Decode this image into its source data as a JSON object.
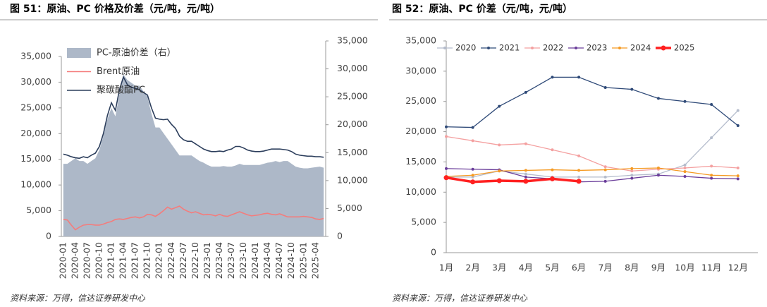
{
  "chart_data": [
    {
      "type": "combo",
      "title": "图 51：原油、PC 价格及价差（元/吨，元/吨）",
      "source": "资料来源：万得，信达证券研发中心",
      "categories": [
        "2020-01",
        null,
        null,
        "2020-04",
        null,
        null,
        "2020-07",
        null,
        null,
        "2020-10",
        null,
        null,
        "2021-01",
        null,
        null,
        "2021-04",
        null,
        null,
        "2021-07",
        null,
        null,
        "2021-10",
        null,
        null,
        "2022-01",
        null,
        null,
        "2022-04",
        null,
        null,
        "2022-07",
        null,
        null,
        "2022-10",
        null,
        null,
        "2023-01",
        null,
        null,
        "2023-04",
        null,
        null,
        "2023-07",
        null,
        null,
        "2023-10",
        null,
        null,
        "2024-01",
        null,
        null,
        "2024-04",
        null,
        null,
        "2024-07",
        null,
        null,
        "2024-10",
        null,
        null,
        "2025-01",
        null,
        null,
        "2025-04",
        null,
        null
      ],
      "ylim": [
        0,
        35000
      ],
      "yticks": [
        0,
        {
          "value": 5000,
          "label": "5,000"
        },
        {
          "value": 10000,
          "label": "10,000"
        },
        {
          "value": 15000,
          "label": "15,000"
        },
        {
          "value": 20000,
          "label": "20,000"
        },
        {
          "value": 25000,
          "label": "25,000"
        },
        {
          "value": 30000,
          "label": "30,000"
        },
        {
          "value": 35000,
          "label": "35,000"
        }
      ],
      "y2lim": [
        0,
        35000
      ],
      "y2ticks": [
        0,
        {
          "value": 5000,
          "label": "5,000"
        },
        {
          "value": 10000,
          "label": "10,000"
        },
        {
          "value": 15000,
          "label": "15,000"
        },
        {
          "value": 20000,
          "label": "20,000"
        },
        {
          "value": 25000,
          "label": "25,000"
        },
        {
          "value": 30000,
          "label": "30,000"
        },
        {
          "value": 35000,
          "label": "35,000"
        }
      ],
      "legend": "upper left",
      "series": [
        {
          "name": "PC-原油价差（右）",
          "type": "area",
          "axis": "y2",
          "color": "#adb8c8",
          "values": [
            13000,
            13000,
            13500,
            14000,
            13500,
            13500,
            13000,
            13500,
            14000,
            15500,
            18000,
            21000,
            23000,
            21500,
            25500,
            29000,
            28000,
            27500,
            27000,
            27000,
            26000,
            25000,
            22000,
            19500,
            19500,
            18500,
            17500,
            16500,
            15500,
            14500,
            14500,
            14500,
            14500,
            14000,
            13500,
            13200,
            12800,
            12500,
            12500,
            12500,
            12600,
            12500,
            12500,
            12700,
            13000,
            12800,
            12800,
            12800,
            12800,
            12800,
            13000,
            13200,
            13300,
            13500,
            13300,
            13500,
            13500,
            13000,
            12500,
            12300,
            12200,
            12200,
            12300,
            12400,
            12500,
            12300
          ]
        },
        {
          "name": "Brent原油",
          "type": "line",
          "color": "#f47c7c",
          "values": [
            3300,
            3200,
            2200,
            1300,
            1800,
            2200,
            2300,
            2300,
            2200,
            2200,
            2400,
            2700,
            2900,
            3300,
            3400,
            3300,
            3500,
            3700,
            3800,
            3600,
            3800,
            4300,
            4200,
            3900,
            4400,
            5000,
            5700,
            5300,
            5600,
            5900,
            5300,
            4900,
            4600,
            4800,
            4500,
            4200,
            4300,
            4200,
            4000,
            4300,
            4000,
            3900,
            4200,
            4500,
            4800,
            4500,
            4200,
            4000,
            4100,
            4200,
            4400,
            4500,
            4300,
            4200,
            4400,
            4100,
            3800,
            3800,
            3800,
            3800,
            3900,
            3800,
            3700,
            3400,
            3300,
            3500
          ]
        },
        {
          "name": "聚碳酸酯PC",
          "type": "line",
          "color": "#2c3e5c",
          "values": [
            16000,
            15800,
            15500,
            15300,
            15200,
            15500,
            15300,
            15800,
            16200,
            17500,
            20000,
            23500,
            26000,
            24500,
            28500,
            31000,
            29500,
            29000,
            28800,
            28500,
            28000,
            27500,
            25000,
            23000,
            22800,
            22700,
            22800,
            21800,
            21000,
            19500,
            18800,
            18500,
            18500,
            18000,
            17500,
            17000,
            16700,
            16500,
            16500,
            16600,
            16500,
            16800,
            17000,
            17500,
            17500,
            17200,
            16800,
            16600,
            16500,
            16500,
            16600,
            16800,
            17000,
            17000,
            17000,
            16900,
            16800,
            16500,
            16000,
            15800,
            15700,
            15600,
            15600,
            15500,
            15500,
            15400
          ]
        }
      ]
    },
    {
      "type": "line",
      "title": "图 52：原油、PC 价差（元/吨，元/吨）",
      "source": "资料来源：万得，信达证券研发中心",
      "categories": [
        "1月",
        "2月",
        "3月",
        "4月",
        "5月",
        "6月",
        "7月",
        "8月",
        "9月",
        "10月",
        "11月",
        "12月"
      ],
      "ylim": [
        0,
        35000
      ],
      "yticks": [
        0,
        {
          "value": 5000,
          "label": "5,000"
        },
        {
          "value": 10000,
          "label": "10,000"
        },
        {
          "value": 15000,
          "label": "15,000"
        },
        {
          "value": 20000,
          "label": "20,000"
        },
        {
          "value": 25000,
          "label": "25,000"
        },
        {
          "value": 30000,
          "label": "30,000"
        },
        {
          "value": 35000,
          "label": "35,000"
        }
      ],
      "legend": "top",
      "series": [
        {
          "name": "2020",
          "color": "#b4bccc",
          "values": [
            12500,
            12500,
            13500,
            13000,
            12500,
            12500,
            12500,
            12800,
            13000,
            14500,
            19000,
            23500
          ]
        },
        {
          "name": "2021",
          "color": "#2f4a78",
          "values": [
            20800,
            20700,
            24200,
            26500,
            29000,
            29000,
            27300,
            27000,
            25500,
            25000,
            24500,
            21000
          ]
        },
        {
          "name": "2022",
          "color": "#f4a0a0",
          "values": [
            19200,
            18500,
            17800,
            18000,
            17000,
            16000,
            14200,
            13500,
            13800,
            14000,
            14300,
            14000
          ]
        },
        {
          "name": "2023",
          "color": "#6a3d9a",
          "values": [
            13900,
            13800,
            13700,
            12500,
            12200,
            11700,
            11800,
            12300,
            12800,
            12600,
            12300,
            12200
          ]
        },
        {
          "name": "2024",
          "color": "#f59a23",
          "values": [
            12600,
            12800,
            13500,
            13600,
            13700,
            13600,
            13700,
            13900,
            14000,
            13400,
            12800,
            12700
          ]
        },
        {
          "name": "2025",
          "color": "#ff2020",
          "values": [
            12400,
            11700,
            11900,
            11800,
            12200,
            11800,
            null,
            null,
            null,
            null,
            null,
            null
          ]
        }
      ]
    }
  ]
}
